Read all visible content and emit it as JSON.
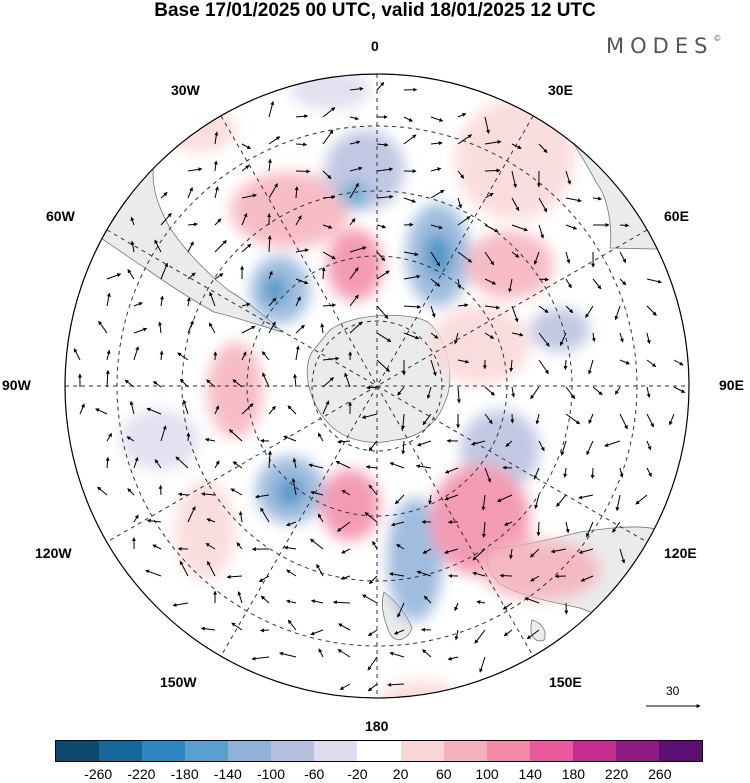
{
  "title": "Base 17/01/2025 00 UTC, valid 18/01/2025 12 UTC",
  "brand": {
    "name": "MODES",
    "mark": "©"
  },
  "longitudes": {
    "north": "0",
    "ne30": "30E",
    "e60": "60E",
    "e90": "90E",
    "e120": "120E",
    "e150": "150E",
    "south": "180",
    "w150": "150W",
    "w120": "120W",
    "w90": "90W",
    "w60": "60W",
    "w30": "30W"
  },
  "reference_vector": {
    "value": "30"
  },
  "colorbar": {
    "colors": [
      "#0d4a6e",
      "#17689a",
      "#2e86c1",
      "#5aa0cf",
      "#8fb2d9",
      "#b7bfdf",
      "#dcdcee",
      "#ffffff",
      "#fad7d7",
      "#f6b1bc",
      "#f38aa8",
      "#e85a9c",
      "#c52c8f",
      "#8e1a86",
      "#5c0f73"
    ],
    "labels": [
      "-260",
      "-220",
      "-180",
      "-140",
      "-100",
      "-60",
      "-20",
      "20",
      "60",
      "100",
      "140",
      "180",
      "220",
      "260"
    ]
  },
  "colors": {
    "land": "#ebebeb",
    "coast": "#666666",
    "grid": "#333333"
  }
}
